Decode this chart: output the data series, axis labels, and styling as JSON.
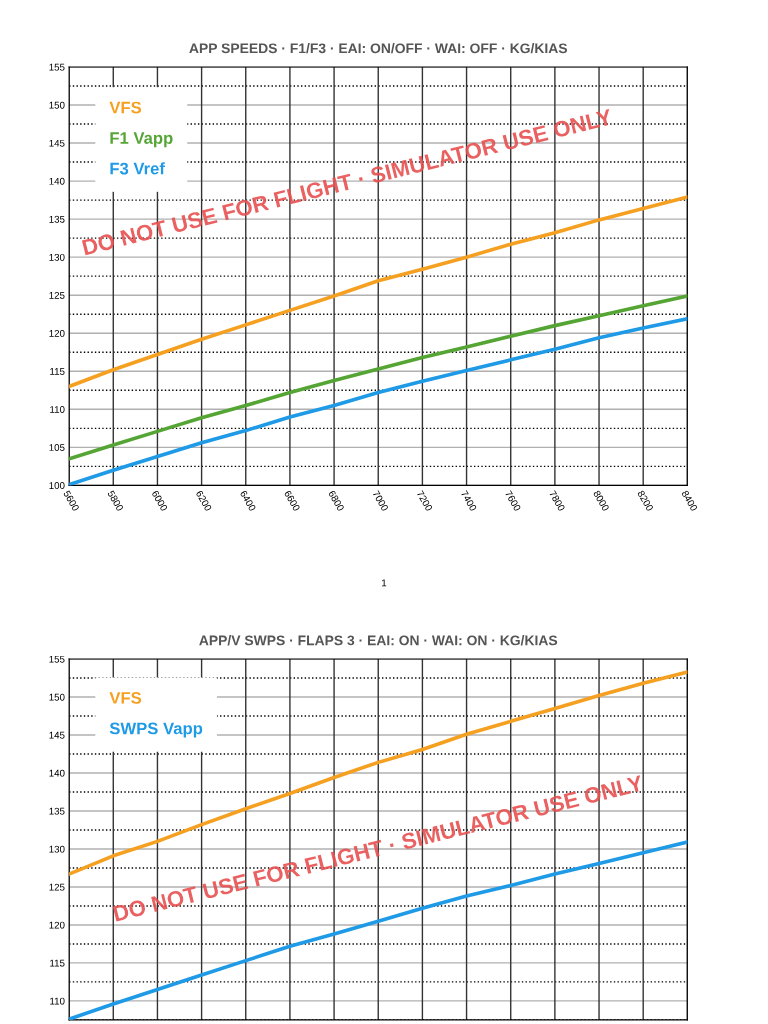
{
  "chart_data": [
    {
      "type": "line",
      "title": "APP SPEEDS · F1/F3 · EAI: ON/OFF · WAI: OFF · KG/KIAS",
      "x": [
        5600,
        5800,
        6000,
        6200,
        6400,
        6600,
        6800,
        7000,
        7200,
        7400,
        7600,
        7800,
        8000,
        8200,
        8400
      ],
      "series": [
        {
          "name": "VFS",
          "color": "#f5a020",
          "values": [
            113,
            115.2,
            117.2,
            119.2,
            121.1,
            123,
            124.9,
            126.9,
            128.4,
            130,
            131.7,
            133.2,
            134.9,
            136.4,
            137.9
          ]
        },
        {
          "name": "F1 Vapp",
          "color": "#55a535",
          "values": [
            103.5,
            105.3,
            107.1,
            108.9,
            110.5,
            112.2,
            113.8,
            115.3,
            116.8,
            118.2,
            119.6,
            121,
            122.3,
            123.6,
            124.9
          ]
        },
        {
          "name": "F3 Vref",
          "color": "#1e9ae6",
          "values": [
            100.1,
            102,
            103.8,
            105.6,
            107.2,
            109,
            110.5,
            112.2,
            113.7,
            115.1,
            116.5,
            117.9,
            119.4,
            120.7,
            121.9
          ]
        }
      ],
      "xlim": [
        5600,
        8400
      ],
      "xticks": [
        5600,
        5800,
        6000,
        6200,
        6400,
        6600,
        6800,
        7000,
        7200,
        7400,
        7600,
        7800,
        8000,
        8200,
        8400
      ],
      "ylim": [
        100,
        155
      ],
      "yticks": [
        100,
        {
          "value": 102.5,
          "label": null
        },
        105,
        {
          "value": 107.5,
          "label": null
        },
        110,
        {
          "value": 112.5,
          "label": null
        },
        115,
        {
          "value": 117.5,
          "label": null
        },
        120,
        {
          "value": 122.5,
          "label": null
        },
        125,
        {
          "value": 127.5,
          "label": null
        },
        130,
        {
          "value": 132.5,
          "label": null
        },
        135,
        {
          "value": 137.5,
          "label": null
        },
        140,
        {
          "value": 142.5,
          "label": null
        },
        145,
        {
          "value": 147.5,
          "label": null
        },
        150,
        {
          "value": 152.5,
          "label": null
        },
        155
      ],
      "grid": true,
      "legend": "top left",
      "line_style": "solid",
      "annotations": [
        "DO NOT USE FOR FLIGHT · SIMULATOR USE ONLY",
        "1"
      ]
    },
    {
      "type": "line",
      "title": "APP/V SWPS · FLAPS 3 · EAI: ON · WAI: ON · KG/KIAS",
      "categories": [
        null,
        null,
        null,
        null,
        null,
        null,
        null,
        null,
        null,
        null,
        null,
        null,
        null,
        null,
        null
      ],
      "series": [
        {
          "name": "VFS",
          "color": "#f5a020",
          "values": [
            126.7,
            129.1,
            131,
            133.2,
            135.3,
            137.3,
            139.4,
            141.4,
            143.1,
            145.1,
            146.8,
            148.5,
            150.2,
            151.8,
            153.3
          ]
        },
        {
          "name": "SWPS Vapp",
          "color": "#1e9ae6",
          "values": [
            107.6,
            109.6,
            111.5,
            113.4,
            115.3,
            117.2,
            118.8,
            120.5,
            122.2,
            123.8,
            125.2,
            126.7,
            128.1,
            129.5,
            130.9
          ]
        }
      ],
      "ylim": [
        107.5,
        155
      ],
      "yticks": [
        {
          "value": 107.5,
          "label": null
        },
        110,
        {
          "value": 112.5,
          "label": null
        },
        115,
        {
          "value": 117.5,
          "label": null
        },
        120,
        {
          "value": 122.5,
          "label": null
        },
        125,
        {
          "value": 127.5,
          "label": null
        },
        130,
        {
          "value": 132.5,
          "label": null
        },
        135,
        {
          "value": 137.5,
          "label": null
        },
        140,
        {
          "value": 142.5,
          "label": null
        },
        145,
        {
          "value": 147.5,
          "label": null
        },
        150,
        {
          "value": 152.5,
          "label": null
        },
        155
      ],
      "grid": true,
      "legend": "top left",
      "line_style": "solid",
      "tick_labels": "y",
      "annotations": [
        "DO NOT USE FOR FLIGHT · SIMULATOR USE ONLY"
      ]
    }
  ]
}
